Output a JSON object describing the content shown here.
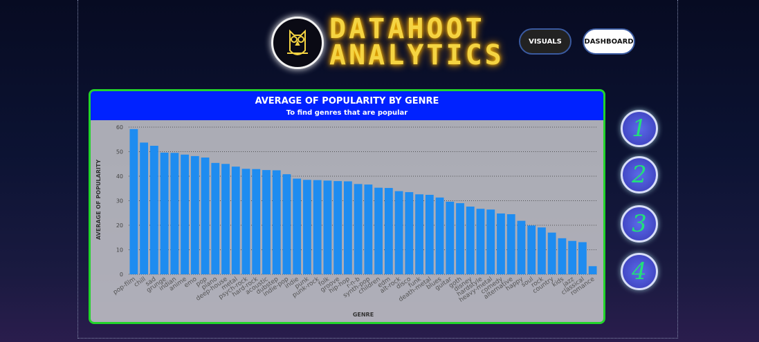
{
  "header": {
    "brand_line1": "DATAHOOT",
    "brand_line2": "ANALYTICS"
  },
  "nav": [
    "VISUALS",
    "DASHBOARD"
  ],
  "pages": [
    "1",
    "2",
    "3",
    "4"
  ],
  "chart_data": {
    "type": "bar",
    "title": "AVERAGE OF POPULARITY BY GENRE",
    "subtitle": "To find genres that are popular",
    "x_label": "GENRE",
    "y_label": "AVERAGE OF POPULARITY",
    "color": "#1e8cf0",
    "categories": [
      "pop-film",
      "chill",
      "sad",
      "grunge",
      "indian",
      "anime",
      "emo",
      "pop",
      "piano",
      "deep-house",
      "metal",
      "psych-rock",
      "hard-rock",
      "acoustic",
      "dubstep",
      "indie-pop",
      "indie",
      "punk",
      "punk-rock",
      "folk",
      "groove",
      "hip-hop",
      "r-n-b",
      "synth-pop",
      "children",
      "edm",
      "alt-rock",
      "disco",
      "funk",
      "death-metal",
      "blues",
      "guitar",
      "goth",
      "disney",
      "hardstyle",
      "heavy-metal",
      "comedy",
      "alternative",
      "happy",
      "soul",
      "rock",
      "country",
      "kids",
      "jazz",
      "classical",
      "romance"
    ],
    "values": [
      59.2,
      53.7,
      52.4,
      49.6,
      49.5,
      48.8,
      48.2,
      47.6,
      45.4,
      45.0,
      43.9,
      43.0,
      42.9,
      42.5,
      42.4,
      40.8,
      39.0,
      38.5,
      38.4,
      38.2,
      38.0,
      37.9,
      36.8,
      36.6,
      35.3,
      35.2,
      33.9,
      33.5,
      32.6,
      32.4,
      31.3,
      29.6,
      29.0,
      27.6,
      26.7,
      26.4,
      24.8,
      24.5,
      21.8,
      19.9,
      19.1,
      17.0,
      14.7,
      13.6,
      13.1,
      3.3
    ],
    "ylim": [
      0,
      60
    ],
    "yticks": [
      0,
      10,
      20,
      30,
      40,
      50,
      60
    ],
    "grid": true
  }
}
